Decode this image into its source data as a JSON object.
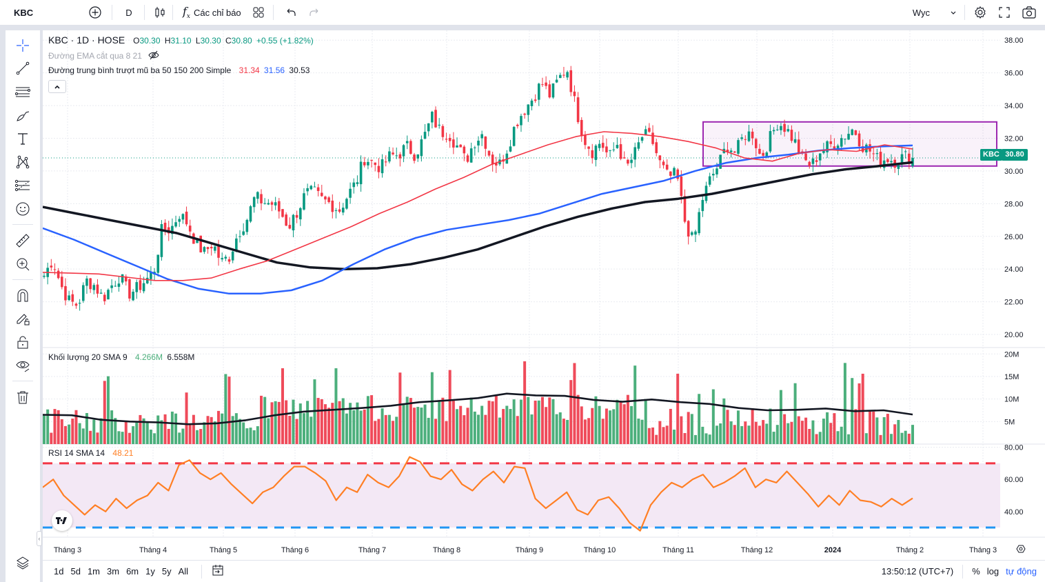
{
  "topbar": {
    "symbol": "KBC",
    "interval": "D",
    "indicators_label": "Các chỉ báo",
    "watchlist_label": "Wyc",
    "icons": [
      "plus-circle-icon",
      "candles-icon",
      "fx-icon",
      "layout-grid-icon",
      "undo-icon",
      "redo-icon",
      "chevron-down-icon",
      "gear-icon",
      "fullscreen-icon",
      "camera-icon"
    ]
  },
  "left_toolbar": {
    "tools": [
      "crosshair-icon",
      "trend-line-icon",
      "horizontal-lines-icon",
      "brush-icon",
      "text-icon",
      "pattern-icon",
      "fib-icon",
      "emoji-icon",
      "ruler-icon",
      "zoom-in-icon",
      "magnet-icon",
      "pencil-lock-icon",
      "lock-icon",
      "eye-icon",
      "trash-icon"
    ],
    "bottom_icon": "layers-icon"
  },
  "legend": {
    "title": "KBC · 1D · HOSE",
    "o_label": "O",
    "o": "30.30",
    "h_label": "H",
    "h": "31.10",
    "l_label": "L",
    "l": "30.30",
    "c_label": "C",
    "c": "30.80",
    "change": "+0.55 (+1.82%)",
    "ema_label": "Đường EMA cắt qua 8 21",
    "ma_label": "Đường trung bình trượt mũ ba 50 150 200 Simple",
    "ma50": "31.34",
    "ma150": "31.56",
    "ma200": "30.53"
  },
  "volume_legend": {
    "label": "Khối lượng 20 SMA 9",
    "v1": "4.266M",
    "v2": "6.558M"
  },
  "rsi_legend": {
    "label": "RSI 14 SMA 14",
    "value": "48.21"
  },
  "price_tag": {
    "symbol": "KBC",
    "price": "30.80"
  },
  "colors": {
    "up": "#089981",
    "down": "#f23645",
    "ma50": "#f23645",
    "ma150": "#2962ff",
    "ma200": "#131722",
    "rsi": "#ff7f24",
    "rect": "#9c27b0",
    "vol_up": "#4caf7c",
    "vol_down": "#ef4b5a"
  },
  "bottombar": {
    "ranges": [
      "1d",
      "5d",
      "1m",
      "3m",
      "6m",
      "1y",
      "5y",
      "All"
    ],
    "time": "13:50:12 (UTC+7)",
    "percent": "%",
    "log": "log",
    "auto": "tự động"
  },
  "chart_data": {
    "type": "candlestick",
    "price_axis": {
      "ticks": [
        "38.00",
        "36.00",
        "34.00",
        "32.00",
        "30.00",
        "28.00",
        "26.00",
        "24.00",
        "22.00",
        "20.00"
      ],
      "range": [
        19.2,
        38.6
      ]
    },
    "volume_axis": {
      "ticks": [
        "20M",
        "15M",
        "10M",
        "5M"
      ],
      "range": [
        0,
        20.5
      ]
    },
    "rsi_axis": {
      "ticks": [
        "80.00",
        "60.00",
        "40.00"
      ],
      "range": [
        24,
        82
      ],
      "upper": 70,
      "lower": 30
    },
    "x_labels": [
      "Tháng 3",
      "Tháng 4",
      "Tháng 5",
      "Tháng 6",
      "Tháng 7",
      "Tháng 8",
      "Tháng 9",
      "Tháng 10",
      "Tháng 11",
      "Tháng 12",
      "2024",
      "Tháng 2",
      "Tháng 3"
    ],
    "x_label_bold": [
      false,
      false,
      false,
      false,
      false,
      false,
      false,
      false,
      false,
      false,
      true,
      false,
      false
    ],
    "close_anchors": [
      23.6,
      24.6,
      23.0,
      22.0,
      21.8,
      23.3,
      23.0,
      22.2,
      23.0,
      23.6,
      22.5,
      22.8,
      23.3,
      23.8,
      26.5,
      26.4,
      27.4,
      26.8,
      25.6,
      25.0,
      25.6,
      24.4,
      24.8,
      26.2,
      27.0,
      28.4,
      28.1,
      28.0,
      27.5,
      26.6,
      27.5,
      28.6,
      28.7,
      28.2,
      28.0,
      27.6,
      28.5,
      29.3,
      30.8,
      30.5,
      30.2,
      30.9,
      31.0,
      31.5,
      31.0,
      32.0,
      33.3,
      32.4,
      32.3,
      31.5,
      30.6,
      31.8,
      32.3,
      30.7,
      30.4,
      31.5,
      33.0,
      33.8,
      34.5,
      35.4,
      34.6,
      35.6,
      36.3,
      34.0,
      32.0,
      31.2,
      31.8,
      30.8,
      31.7,
      30.1,
      31.0,
      32.2,
      32.0,
      30.5,
      29.6,
      29.8,
      26.9,
      25.6,
      28.2,
      29.5,
      30.4,
      31.6,
      31.1,
      32.2,
      32.3,
      30.8,
      31.9,
      33.0,
      32.6,
      31.8,
      30.7,
      30.3,
      31.2,
      31.5,
      31.8,
      32.2,
      32.6,
      31.6,
      31.2,
      30.6,
      30.8,
      30.6,
      30.9,
      30.8
    ],
    "ma50": [
      23.8,
      23.75,
      23.7,
      23.5,
      23.3,
      23.3,
      23.45,
      24.0,
      24.5,
      25.2,
      25.9,
      26.6,
      27.4,
      28.1,
      28.9,
      29.6,
      30.4,
      31.0,
      31.6,
      32.1,
      32.4,
      32.3,
      32.1,
      31.8,
      31.4,
      30.8,
      30.6,
      31.1,
      31.3,
      31.2,
      31.6,
      31.34
    ],
    "ma150": [
      26.5,
      25.8,
      25.0,
      24.2,
      23.4,
      22.8,
      22.5,
      22.5,
      22.7,
      23.3,
      24.3,
      25.2,
      25.9,
      26.4,
      26.7,
      27.0,
      27.4,
      28.0,
      28.6,
      29.0,
      29.4,
      30.0,
      30.5,
      30.8,
      31.0,
      31.25,
      31.4,
      31.5,
      31.56
    ],
    "ma200": [
      27.8,
      27.4,
      27.0,
      26.6,
      26.2,
      25.6,
      25.0,
      24.4,
      24.1,
      24.0,
      24.05,
      24.3,
      24.7,
      25.2,
      25.9,
      26.6,
      27.2,
      27.7,
      28.1,
      28.3,
      28.6,
      29.0,
      29.4,
      29.8,
      30.1,
      30.3,
      30.53
    ],
    "volume_sma": [
      6.5,
      6.4,
      5.4,
      5.0,
      4.8,
      4.4,
      4.6,
      5.3,
      6.4,
      7.2,
      7.6,
      8.0,
      8.5,
      9.3,
      9.7,
      10.2,
      11.2,
      10.8,
      10.7,
      9.8,
      9.4,
      9.9,
      9.3,
      8.9,
      8.0,
      7.5,
      7.6,
      7.9,
      7.3,
      7.5,
      6.558
    ],
    "rsi": [
      55,
      60,
      50,
      44,
      38,
      44,
      40,
      48,
      42,
      47,
      50,
      58,
      53,
      69,
      72,
      64,
      60,
      64,
      57,
      51,
      45,
      52,
      55,
      62,
      68,
      68,
      64,
      59,
      47,
      55,
      52,
      63,
      58,
      55,
      62,
      74,
      71,
      62,
      60,
      66,
      57,
      53,
      60,
      65,
      58,
      68,
      67,
      48,
      42,
      47,
      52,
      41,
      38,
      47,
      49,
      42,
      33,
      28,
      44,
      52,
      58,
      55,
      60,
      63,
      55,
      58,
      62,
      67,
      55,
      60,
      58,
      65,
      58,
      51,
      43,
      50,
      44,
      53,
      47,
      46,
      43,
      48,
      44,
      48.21
    ],
    "rsi_sma": [],
    "range_box": {
      "top": 33.0,
      "bottom": 30.3
    }
  }
}
